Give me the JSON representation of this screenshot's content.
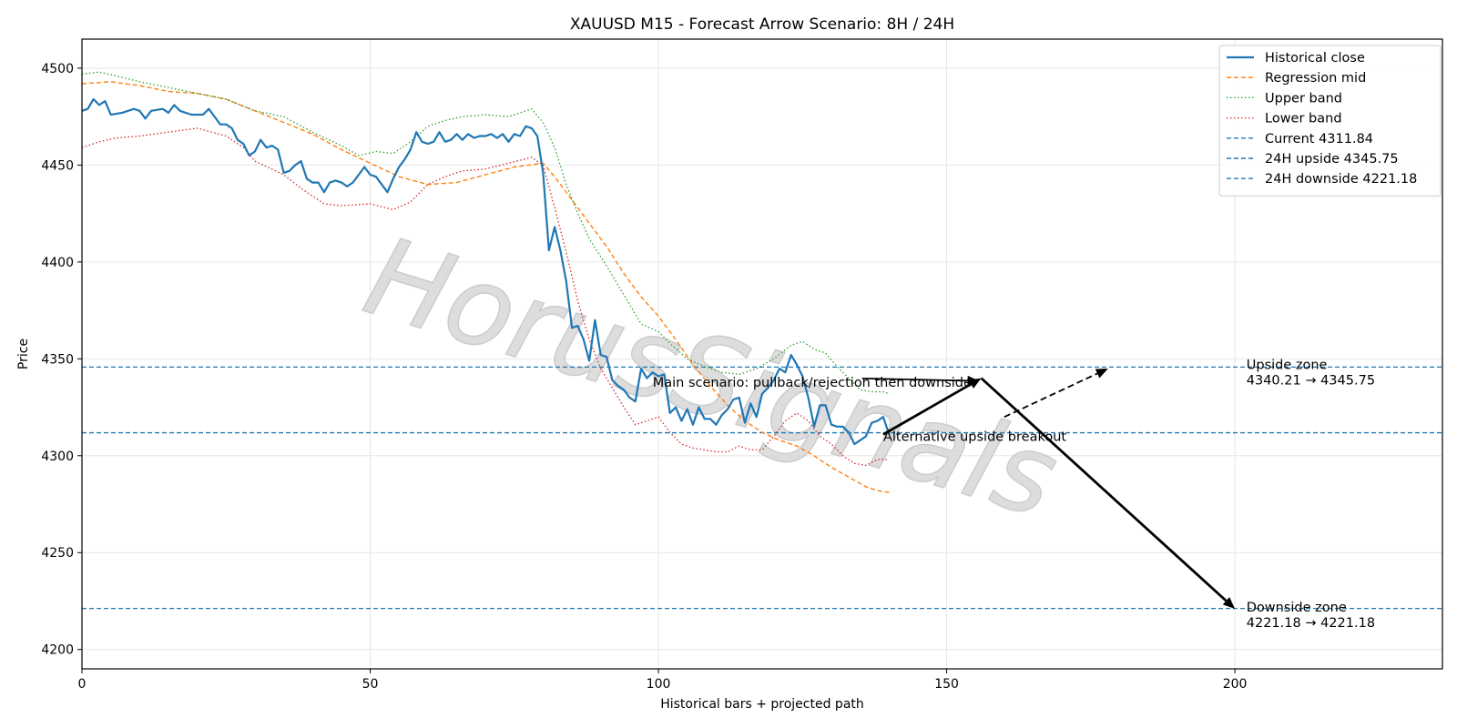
{
  "chart_data": {
    "type": "line",
    "title": "XAUUSD M15 - Forecast Arrow Scenario: 8H / 24H",
    "xlabel": "Historical bars + projected path",
    "ylabel": "Price",
    "xlim": [
      0,
      236
    ],
    "ylim": [
      4190,
      4515
    ],
    "x_ticks": [
      0,
      50,
      100,
      150,
      200
    ],
    "y_ticks": [
      4200,
      4250,
      4300,
      4350,
      4400,
      4450,
      4500
    ],
    "grid": true,
    "legend_position": "top-right",
    "watermark": "HorusSignals",
    "colors": {
      "historical": "#1f77b4",
      "regression": "#ff7f0e",
      "upper": "#2ca02c",
      "lower": "#d62728",
      "hline": "#1f77b4",
      "arrow": "#000000",
      "grid": "#e6e6e6"
    },
    "series": [
      {
        "name": "Historical close",
        "style": "solid",
        "points": [
          [
            0,
            4478
          ],
          [
            1,
            4479
          ],
          [
            2,
            4484
          ],
          [
            3,
            4481
          ],
          [
            4,
            4483
          ],
          [
            5,
            4476
          ],
          [
            7,
            4477
          ],
          [
            9,
            4479
          ],
          [
            10,
            4478
          ],
          [
            11,
            4474
          ],
          [
            12,
            4478
          ],
          [
            14,
            4479
          ],
          [
            15,
            4477
          ],
          [
            16,
            4481
          ],
          [
            17,
            4478
          ],
          [
            18,
            4477
          ],
          [
            19,
            4476
          ],
          [
            21,
            4476
          ],
          [
            22,
            4479
          ],
          [
            24,
            4471
          ],
          [
            25,
            4471
          ],
          [
            26,
            4469
          ],
          [
            27,
            4463
          ],
          [
            28,
            4461
          ],
          [
            29,
            4455
          ],
          [
            30,
            4457
          ],
          [
            31,
            4463
          ],
          [
            32,
            4459
          ],
          [
            33,
            4460
          ],
          [
            34,
            4458
          ],
          [
            35,
            4446
          ],
          [
            36,
            4447
          ],
          [
            37,
            4450
          ],
          [
            38,
            4452
          ],
          [
            39,
            4443
          ],
          [
            40,
            4441
          ],
          [
            41,
            4441
          ],
          [
            42,
            4436
          ],
          [
            43,
            4441
          ],
          [
            44,
            4442
          ],
          [
            45,
            4441
          ],
          [
            46,
            4439
          ],
          [
            47,
            4441
          ],
          [
            48,
            4445
          ],
          [
            49,
            4449
          ],
          [
            50,
            4445
          ],
          [
            51,
            4444
          ],
          [
            52,
            4440
          ],
          [
            53,
            4436
          ],
          [
            54,
            4443
          ],
          [
            55,
            4449
          ],
          [
            56,
            4453
          ],
          [
            57,
            4458
          ],
          [
            58,
            4467
          ],
          [
            59,
            4462
          ],
          [
            60,
            4461
          ],
          [
            61,
            4462
          ],
          [
            62,
            4467
          ],
          [
            63,
            4462
          ],
          [
            64,
            4463
          ],
          [
            65,
            4466
          ],
          [
            66,
            4463
          ],
          [
            67,
            4466
          ],
          [
            68,
            4464
          ],
          [
            69,
            4465
          ],
          [
            70,
            4465
          ],
          [
            71,
            4466
          ],
          [
            72,
            4464
          ],
          [
            73,
            4466
          ],
          [
            74,
            4462
          ],
          [
            75,
            4466
          ],
          [
            76,
            4465
          ],
          [
            77,
            4470
          ],
          [
            78,
            4469
          ],
          [
            79,
            4465
          ],
          [
            80,
            4446
          ],
          [
            81,
            4406
          ],
          [
            82,
            4418
          ],
          [
            83,
            4406
          ],
          [
            84,
            4390
          ],
          [
            85,
            4366
          ],
          [
            86,
            4367
          ],
          [
            87,
            4360
          ],
          [
            88,
            4349
          ],
          [
            89,
            4370
          ],
          [
            90,
            4352
          ],
          [
            91,
            4351
          ],
          [
            92,
            4339
          ],
          [
            93,
            4336
          ],
          [
            94,
            4334
          ],
          [
            95,
            4330
          ],
          [
            96,
            4328
          ],
          [
            97,
            4345
          ],
          [
            98,
            4340
          ],
          [
            99,
            4343
          ],
          [
            100,
            4341
          ],
          [
            101,
            4342
          ],
          [
            102,
            4322
          ],
          [
            103,
            4325
          ],
          [
            104,
            4318
          ],
          [
            105,
            4324
          ],
          [
            106,
            4316
          ],
          [
            107,
            4325
          ],
          [
            108,
            4319
          ],
          [
            109,
            4319
          ],
          [
            110,
            4316
          ],
          [
            111,
            4321
          ],
          [
            112,
            4324
          ],
          [
            113,
            4329
          ],
          [
            114,
            4330
          ],
          [
            115,
            4317
          ],
          [
            116,
            4327
          ],
          [
            117,
            4320
          ],
          [
            118,
            4332
          ],
          [
            119,
            4335
          ],
          [
            120,
            4339
          ],
          [
            121,
            4345
          ],
          [
            122,
            4343
          ],
          [
            123,
            4352
          ],
          [
            124,
            4347
          ],
          [
            125,
            4341
          ],
          [
            126,
            4330
          ],
          [
            127,
            4315
          ],
          [
            128,
            4326
          ],
          [
            129,
            4326
          ],
          [
            130,
            4316
          ],
          [
            131,
            4315
          ],
          [
            132,
            4315
          ],
          [
            133,
            4312
          ],
          [
            134,
            4306
          ],
          [
            135,
            4308
          ],
          [
            136,
            4310
          ],
          [
            137,
            4317
          ],
          [
            138,
            4318
          ],
          [
            139,
            4320
          ],
          [
            140,
            4311
          ]
        ]
      },
      {
        "name": "Regression mid",
        "style": "dashed",
        "points": [
          [
            0,
            4492
          ],
          [
            5,
            4493
          ],
          [
            10,
            4491
          ],
          [
            15,
            4488
          ],
          [
            20,
            4487
          ],
          [
            25,
            4484
          ],
          [
            30,
            4478
          ],
          [
            35,
            4472
          ],
          [
            40,
            4466
          ],
          [
            45,
            4458
          ],
          [
            50,
            4451
          ],
          [
            55,
            4444
          ],
          [
            60,
            4440
          ],
          [
            65,
            4441
          ],
          [
            70,
            4445
          ],
          [
            75,
            4449
          ],
          [
            80,
            4451
          ],
          [
            82,
            4444
          ],
          [
            85,
            4432
          ],
          [
            88,
            4420
          ],
          [
            91,
            4408
          ],
          [
            94,
            4394
          ],
          [
            97,
            4382
          ],
          [
            100,
            4372
          ],
          [
            103,
            4360
          ],
          [
            106,
            4347
          ],
          [
            109,
            4336
          ],
          [
            112,
            4326
          ],
          [
            115,
            4318
          ],
          [
            118,
            4312
          ],
          [
            121,
            4308
          ],
          [
            124,
            4305
          ],
          [
            127,
            4300
          ],
          [
            130,
            4294
          ],
          [
            133,
            4289
          ],
          [
            136,
            4284
          ],
          [
            138,
            4282
          ],
          [
            140,
            4281
          ]
        ]
      },
      {
        "name": "Upper band",
        "style": "dotted",
        "points": [
          [
            0,
            4497
          ],
          [
            3,
            4498
          ],
          [
            6,
            4496
          ],
          [
            10,
            4493
          ],
          [
            15,
            4490
          ],
          [
            20,
            4487
          ],
          [
            25,
            4484
          ],
          [
            30,
            4478
          ],
          [
            35,
            4475
          ],
          [
            40,
            4467
          ],
          [
            45,
            4460
          ],
          [
            48,
            4455
          ],
          [
            51,
            4457
          ],
          [
            54,
            4456
          ],
          [
            57,
            4462
          ],
          [
            60,
            4470
          ],
          [
            63,
            4473
          ],
          [
            66,
            4475
          ],
          [
            70,
            4476
          ],
          [
            74,
            4475
          ],
          [
            78,
            4479
          ],
          [
            80,
            4472
          ],
          [
            82,
            4459
          ],
          [
            84,
            4440
          ],
          [
            86,
            4425
          ],
          [
            88,
            4412
          ],
          [
            91,
            4398
          ],
          [
            94,
            4383
          ],
          [
            97,
            4368
          ],
          [
            100,
            4364
          ],
          [
            102,
            4358
          ],
          [
            105,
            4350
          ],
          [
            108,
            4346
          ],
          [
            111,
            4343
          ],
          [
            114,
            4342
          ],
          [
            117,
            4345
          ],
          [
            120,
            4350
          ],
          [
            123,
            4357
          ],
          [
            125,
            4359
          ],
          [
            127,
            4355
          ],
          [
            129,
            4353
          ],
          [
            131,
            4346
          ],
          [
            133,
            4340
          ],
          [
            135,
            4334
          ],
          [
            137,
            4333
          ],
          [
            139,
            4333
          ],
          [
            140,
            4332
          ]
        ]
      },
      {
        "name": "Lower band",
        "style": "dotted",
        "points": [
          [
            0,
            4459
          ],
          [
            3,
            4462
          ],
          [
            6,
            4464
          ],
          [
            10,
            4465
          ],
          [
            15,
            4467
          ],
          [
            20,
            4469
          ],
          [
            25,
            4465
          ],
          [
            28,
            4459
          ],
          [
            30,
            4452
          ],
          [
            35,
            4445
          ],
          [
            38,
            4438
          ],
          [
            42,
            4430
          ],
          [
            45,
            4429
          ],
          [
            50,
            4430
          ],
          [
            54,
            4427
          ],
          [
            57,
            4431
          ],
          [
            60,
            4440
          ],
          [
            63,
            4444
          ],
          [
            66,
            4447
          ],
          [
            70,
            4448
          ],
          [
            74,
            4451
          ],
          [
            78,
            4454
          ],
          [
            80,
            4450
          ],
          [
            82,
            4428
          ],
          [
            84,
            4405
          ],
          [
            86,
            4380
          ],
          [
            88,
            4360
          ],
          [
            90,
            4345
          ],
          [
            92,
            4335
          ],
          [
            94,
            4325
          ],
          [
            96,
            4316
          ],
          [
            98,
            4318
          ],
          [
            100,
            4320
          ],
          [
            102,
            4312
          ],
          [
            104,
            4306
          ],
          [
            106,
            4304
          ],
          [
            108,
            4303
          ],
          [
            110,
            4302
          ],
          [
            112,
            4302
          ],
          [
            114,
            4305
          ],
          [
            116,
            4303
          ],
          [
            118,
            4303
          ],
          [
            120,
            4310
          ],
          [
            122,
            4318
          ],
          [
            124,
            4322
          ],
          [
            126,
            4318
          ],
          [
            128,
            4310
          ],
          [
            130,
            4306
          ],
          [
            132,
            4300
          ],
          [
            134,
            4296
          ],
          [
            136,
            4295
          ],
          [
            138,
            4298
          ],
          [
            140,
            4298
          ]
        ]
      }
    ],
    "hlines": [
      {
        "name": "Current 4311.84",
        "y": 4311.84
      },
      {
        "name": "24H upside 4345.75",
        "y": 4345.75
      },
      {
        "name": "24H downside 4221.18",
        "y": 4221.18
      }
    ],
    "arrows": [
      {
        "from": [
          139,
          4311
        ],
        "to": [
          156,
          4340
        ],
        "style": "solid"
      },
      {
        "from": [
          156,
          4340
        ],
        "to": [
          200,
          4221
        ],
        "style": "solid"
      },
      {
        "from": [
          160,
          4320
        ],
        "to": [
          178,
          4345
        ],
        "style": "dashed"
      }
    ],
    "annotations": [
      {
        "text": "Main scenario: pullback/rejection then downside",
        "x": 99,
        "y": 4338,
        "arrow_to": [
          156,
          4340
        ]
      },
      {
        "text": "Alternative upside breakout",
        "x": 139,
        "y": 4310
      },
      {
        "text": "Upside zone",
        "x": 202,
        "y": 4347
      },
      {
        "text": "4340.21 → 4345.75",
        "x": 202,
        "y": 4339
      },
      {
        "text": "Downside zone",
        "x": 202,
        "y": 4222
      },
      {
        "text": "4221.18 → 4221.18",
        "x": 202,
        "y": 4214
      }
    ]
  }
}
